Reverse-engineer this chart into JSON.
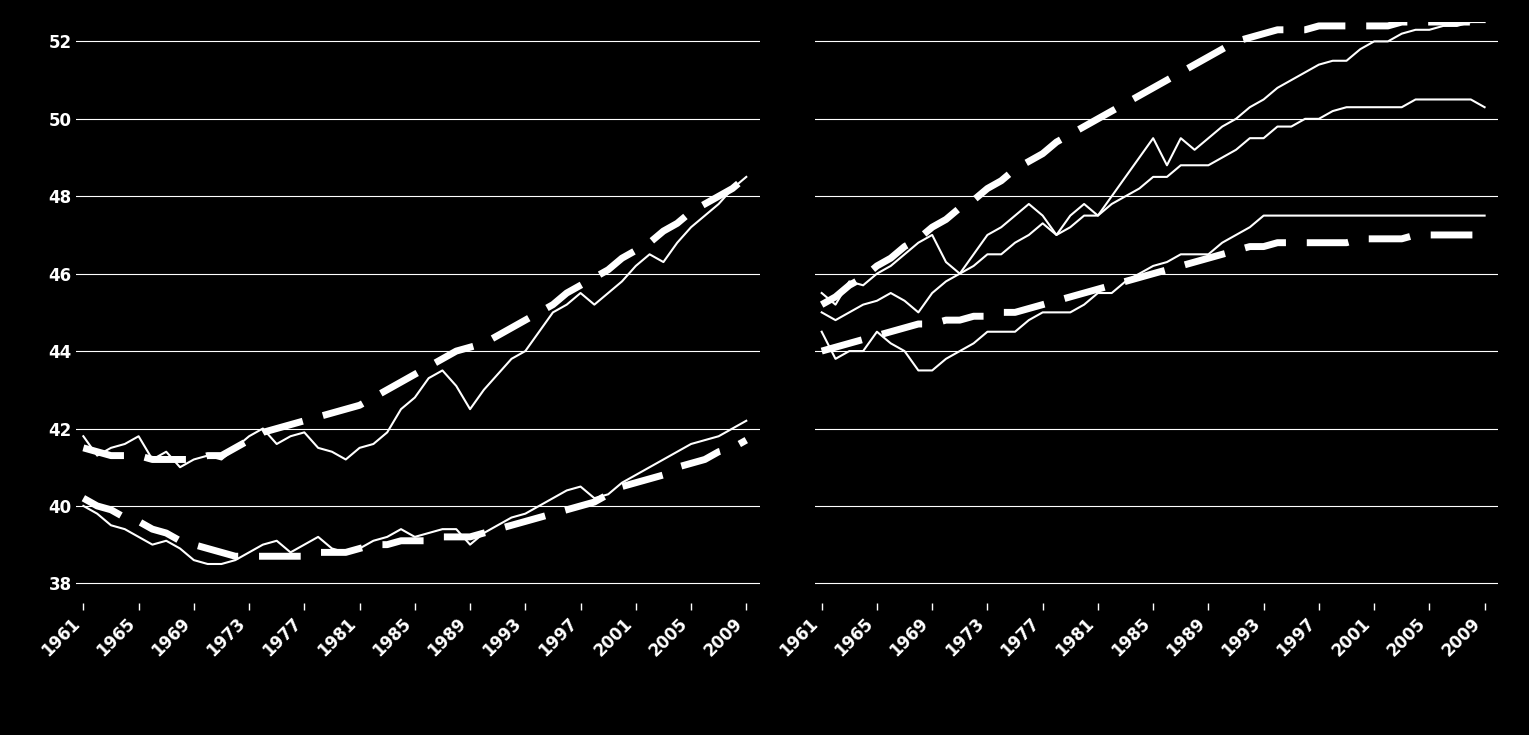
{
  "background_color": "#000000",
  "line_color": "#ffffff",
  "text_color": "#ffffff",
  "ylim": [
    37.5,
    52.5
  ],
  "yticks": [
    38,
    40,
    42,
    44,
    46,
    48,
    50,
    52
  ],
  "years": [
    1961,
    1962,
    1963,
    1964,
    1965,
    1966,
    1967,
    1968,
    1969,
    1970,
    1971,
    1972,
    1973,
    1974,
    1975,
    1976,
    1977,
    1978,
    1979,
    1980,
    1981,
    1982,
    1983,
    1984,
    1985,
    1986,
    1987,
    1988,
    1989,
    1990,
    1991,
    1992,
    1993,
    1994,
    1995,
    1996,
    1997,
    1998,
    1999,
    2000,
    2001,
    2002,
    2003,
    2004,
    2005,
    2006,
    2007,
    2008,
    2009
  ],
  "men_high_actual": [
    41.8,
    41.3,
    41.5,
    41.6,
    41.8,
    41.2,
    41.4,
    41.0,
    41.2,
    41.3,
    41.2,
    41.5,
    41.8,
    42.0,
    41.6,
    41.8,
    41.9,
    41.5,
    41.4,
    41.2,
    41.5,
    41.6,
    41.9,
    42.5,
    42.8,
    43.3,
    43.5,
    43.1,
    42.5,
    43.0,
    43.4,
    43.8,
    44.0,
    44.5,
    45.0,
    45.2,
    45.5,
    45.2,
    45.5,
    45.8,
    46.2,
    46.5,
    46.3,
    46.8,
    47.2,
    47.5,
    47.8,
    48.2,
    48.5
  ],
  "men_low_actual": [
    40.0,
    39.8,
    39.5,
    39.4,
    39.2,
    39.0,
    39.1,
    38.9,
    38.6,
    38.5,
    38.5,
    38.6,
    38.8,
    39.0,
    39.1,
    38.8,
    39.0,
    39.2,
    38.9,
    38.8,
    38.9,
    39.1,
    39.2,
    39.4,
    39.2,
    39.3,
    39.4,
    39.4,
    39.0,
    39.3,
    39.5,
    39.7,
    39.8,
    40.0,
    40.2,
    40.4,
    40.5,
    40.2,
    40.3,
    40.6,
    40.8,
    41.0,
    41.2,
    41.4,
    41.6,
    41.7,
    41.8,
    42.0,
    42.2
  ],
  "men_high_trend": [
    41.5,
    41.4,
    41.3,
    41.3,
    41.3,
    41.2,
    41.2,
    41.2,
    41.2,
    41.3,
    41.3,
    41.5,
    41.7,
    41.9,
    42.0,
    42.1,
    42.2,
    42.3,
    42.4,
    42.5,
    42.6,
    42.8,
    43.0,
    43.2,
    43.4,
    43.6,
    43.8,
    44.0,
    44.1,
    44.2,
    44.4,
    44.6,
    44.8,
    45.0,
    45.2,
    45.5,
    45.7,
    45.9,
    46.1,
    46.4,
    46.6,
    46.8,
    47.1,
    47.3,
    47.6,
    47.8,
    48.0,
    48.2,
    48.5
  ],
  "men_low_trend": [
    40.2,
    40.0,
    39.9,
    39.7,
    39.6,
    39.4,
    39.3,
    39.1,
    39.0,
    38.9,
    38.8,
    38.7,
    38.7,
    38.7,
    38.7,
    38.7,
    38.7,
    38.8,
    38.8,
    38.8,
    38.9,
    39.0,
    39.0,
    39.1,
    39.1,
    39.1,
    39.2,
    39.2,
    39.2,
    39.3,
    39.4,
    39.5,
    39.6,
    39.7,
    39.8,
    39.9,
    40.0,
    40.1,
    40.3,
    40.5,
    40.6,
    40.7,
    40.8,
    41.0,
    41.1,
    41.2,
    41.4,
    41.5,
    41.7
  ],
  "women_high_actual": [
    45.5,
    45.2,
    45.8,
    45.7,
    46.0,
    46.2,
    46.5,
    46.8,
    47.0,
    46.3,
    46.0,
    46.5,
    47.0,
    47.2,
    47.5,
    47.8,
    47.5,
    47.0,
    47.5,
    47.8,
    47.5,
    48.0,
    48.5,
    49.0,
    49.5,
    48.8,
    49.5,
    49.2,
    49.5,
    49.8,
    50.0,
    50.3,
    50.5,
    50.8,
    51.0,
    51.2,
    51.4,
    51.5,
    51.5,
    51.8,
    52.0,
    52.0,
    52.2,
    52.3,
    52.3,
    52.4,
    52.4,
    52.5,
    52.5
  ],
  "women_mid_actual": [
    45.0,
    44.8,
    45.0,
    45.2,
    45.3,
    45.5,
    45.3,
    45.0,
    45.5,
    45.8,
    46.0,
    46.2,
    46.5,
    46.5,
    46.8,
    47.0,
    47.3,
    47.0,
    47.2,
    47.5,
    47.5,
    47.8,
    48.0,
    48.2,
    48.5,
    48.5,
    48.8,
    48.8,
    48.8,
    49.0,
    49.2,
    49.5,
    49.5,
    49.8,
    49.8,
    50.0,
    50.0,
    50.2,
    50.3,
    50.3,
    50.3,
    50.3,
    50.3,
    50.5,
    50.5,
    50.5,
    50.5,
    50.5,
    50.3
  ],
  "women_low_actual": [
    44.5,
    43.8,
    44.0,
    44.0,
    44.5,
    44.2,
    44.0,
    43.5,
    43.5,
    43.8,
    44.0,
    44.2,
    44.5,
    44.5,
    44.5,
    44.8,
    45.0,
    45.0,
    45.0,
    45.2,
    45.5,
    45.5,
    45.8,
    46.0,
    46.2,
    46.3,
    46.5,
    46.5,
    46.5,
    46.8,
    47.0,
    47.2,
    47.5,
    47.5,
    47.5,
    47.5,
    47.5,
    47.5,
    47.5,
    47.5,
    47.5,
    47.5,
    47.5,
    47.5,
    47.5,
    47.5,
    47.5,
    47.5,
    47.5
  ],
  "women_high_trend": [
    45.2,
    45.4,
    45.7,
    45.9,
    46.2,
    46.4,
    46.7,
    46.9,
    47.2,
    47.4,
    47.7,
    47.9,
    48.2,
    48.4,
    48.7,
    48.9,
    49.1,
    49.4,
    49.6,
    49.8,
    50.0,
    50.2,
    50.4,
    50.6,
    50.8,
    51.0,
    51.2,
    51.4,
    51.6,
    51.8,
    52.0,
    52.1,
    52.2,
    52.3,
    52.3,
    52.3,
    52.4,
    52.4,
    52.4,
    52.4,
    52.4,
    52.4,
    52.5,
    52.5,
    52.5,
    52.5,
    52.5,
    52.5,
    52.5
  ],
  "women_low_trend": [
    44.0,
    44.1,
    44.2,
    44.3,
    44.4,
    44.5,
    44.6,
    44.7,
    44.7,
    44.8,
    44.8,
    44.9,
    44.9,
    45.0,
    45.0,
    45.1,
    45.2,
    45.3,
    45.4,
    45.5,
    45.6,
    45.7,
    45.8,
    45.9,
    46.0,
    46.1,
    46.2,
    46.3,
    46.4,
    46.5,
    46.6,
    46.7,
    46.7,
    46.8,
    46.8,
    46.8,
    46.8,
    46.8,
    46.8,
    46.9,
    46.9,
    46.9,
    46.9,
    47.0,
    47.0,
    47.0,
    47.0,
    47.0,
    47.0
  ],
  "xtick_years": [
    1961,
    1965,
    1969,
    1973,
    1977,
    1981,
    1985,
    1989,
    1993,
    1997,
    2001,
    2005,
    2009
  ],
  "fontsize_ticks": 12,
  "lw_actual": 1.5,
  "lw_trend": 5.0,
  "dash_on": 6,
  "dash_off": 3
}
